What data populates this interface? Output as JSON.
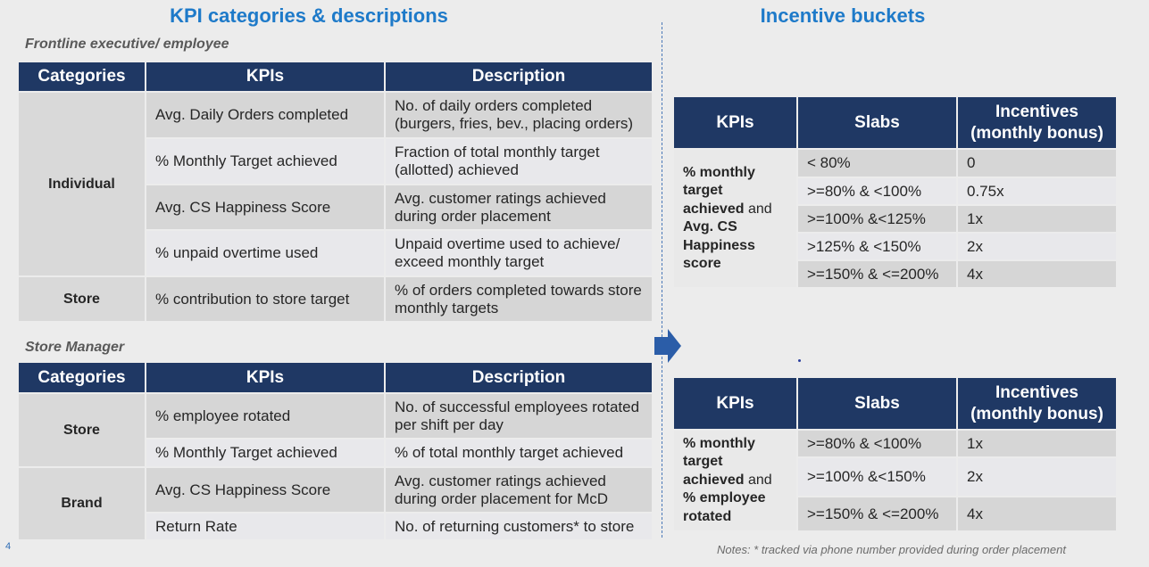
{
  "left_title": "KPI categories & descriptions",
  "right_title": "Incentive buckets",
  "frontline": {
    "label": "Frontline executive/ employee",
    "headers": [
      "Categories",
      "KPIs",
      "Description"
    ],
    "groups": [
      {
        "category": "Individual",
        "rows": [
          [
            "Avg. Daily Orders completed",
            "No. of daily orders completed (burgers, fries, bev., placing orders)"
          ],
          [
            "% Monthly Target achieved",
            "Fraction of total monthly target (allotted) achieved"
          ],
          [
            "Avg. CS Happiness Score",
            "Avg. customer ratings achieved during order placement"
          ],
          [
            "% unpaid overtime used",
            "Unpaid overtime used to achieve/ exceed monthly target"
          ]
        ]
      },
      {
        "category": "Store",
        "rows": [
          [
            "% contribution to store target",
            "% of orders completed towards store monthly targets"
          ]
        ]
      }
    ]
  },
  "manager": {
    "label": "Store Manager",
    "headers": [
      "Categories",
      "KPIs",
      "Description"
    ],
    "groups": [
      {
        "category": "Store",
        "rows": [
          [
            "% employee rotated",
            "No. of successful employees rotated per shift per day"
          ],
          [
            "% Monthly Target achieved",
            "% of total monthly target achieved"
          ]
        ]
      },
      {
        "category": "Brand",
        "rows": [
          [
            "Avg. CS Happiness Score",
            "Avg. customer ratings achieved during order placement for McD"
          ],
          [
            "Return Rate",
            "No. of returning customers* to store"
          ]
        ]
      }
    ]
  },
  "incentives": [
    {
      "headers": [
        "KPIs",
        "Slabs",
        "Incentives (monthly bonus)"
      ],
      "kpi_parts": [
        "% monthly target achieved",
        "and",
        "Avg. CS Happiness score"
      ],
      "rows": [
        [
          "< 80%",
          "0"
        ],
        [
          ">=80% & <100%",
          "0.75x"
        ],
        [
          ">=100% &<125%",
          "1x"
        ],
        [
          ">125% & <150%",
          "2x"
        ],
        [
          ">=150% & <=200%",
          "4x"
        ]
      ]
    },
    {
      "headers": [
        "KPIs",
        "Slabs",
        "Incentives (monthly bonus)"
      ],
      "kpi_parts": [
        "% monthly target achieved",
        "and",
        "% employee rotated"
      ],
      "rows": [
        [
          ">=80% & <100%",
          "1x"
        ],
        [
          ">=100% &<150%",
          "2x"
        ],
        [
          ">=150% & <=200%",
          "4x"
        ]
      ]
    }
  ],
  "notes": "Notes: * tracked via phone number provided during order placement",
  "page_number": "4"
}
